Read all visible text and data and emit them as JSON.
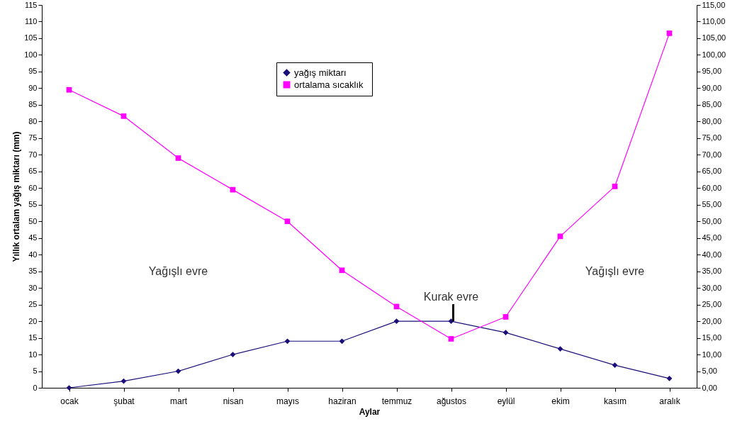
{
  "chart_data": {
    "type": "line",
    "xlabel": "Aylar",
    "ylabel": "Yıllık ortalam yağış miktarı (mm)",
    "categories": [
      "ocak",
      "şubat",
      "mart",
      "nisan",
      "mayıs",
      "haziran",
      "temmuz",
      "ağustos",
      "eylül",
      "ekim",
      "kasım",
      "aralık"
    ],
    "series": [
      {
        "name": "yağış miktarı",
        "color": "#1a0f7a",
        "marker": "diamond",
        "values": [
          0,
          2,
          5,
          10,
          14,
          14,
          20,
          20,
          16.6,
          11.7,
          6.8,
          2.8
        ]
      },
      {
        "name": "ortalama  sıcaklık",
        "color": "#ff00ff",
        "marker": "square",
        "axis": "y2",
        "values": [
          89.5,
          81.6,
          69,
          59.5,
          50,
          35.3,
          24.4,
          14.7,
          21.3,
          45.5,
          60.5,
          106.5
        ]
      }
    ],
    "ylim": [
      0,
      115
    ],
    "yticks": [
      0,
      5,
      10,
      15,
      20,
      25,
      30,
      35,
      40,
      45,
      50,
      55,
      60,
      65,
      70,
      75,
      80,
      85,
      90,
      95,
      100,
      105,
      110,
      115
    ],
    "y2lim": [
      0,
      115
    ],
    "y2ticks": [
      {
        "value": 0,
        "label": "0,00"
      },
      {
        "value": 5,
        "label": "5,00"
      },
      {
        "value": 10,
        "label": "10,00"
      },
      {
        "value": 15,
        "label": "15,00"
      },
      {
        "value": 20,
        "label": "20,00"
      },
      {
        "value": 25,
        "label": "25,00"
      },
      {
        "value": 30,
        "label": "30,00"
      },
      {
        "value": 35,
        "label": "35,00"
      },
      {
        "value": 40,
        "label": "40,00"
      },
      {
        "value": 45,
        "label": "45,00"
      },
      {
        "value": 50,
        "label": "50,00"
      },
      {
        "value": 55,
        "label": "55,00"
      },
      {
        "value": 60,
        "label": "60,00"
      },
      {
        "value": 65,
        "label": "65,00"
      },
      {
        "value": 70,
        "label": "70,00"
      },
      {
        "value": 75,
        "label": "75,00"
      },
      {
        "value": 80,
        "label": "80,00"
      },
      {
        "value": 85,
        "label": "85,00"
      },
      {
        "value": 90,
        "label": "90,00"
      },
      {
        "value": 95,
        "label": "95,00"
      },
      {
        "value": 100,
        "label": "100,00"
      },
      {
        "value": 105,
        "label": "105,00"
      },
      {
        "value": 110,
        "label": "110,00"
      },
      {
        "value": 115,
        "label": "115,00"
      }
    ],
    "annotations": [
      "Yağışlı evre",
      "Yağışlı evre",
      {
        "text": "Kurak evre",
        "x": "ağustos",
        "y": 20
      }
    ],
    "grid": false,
    "legend": "top",
    "line_style": "solid"
  }
}
